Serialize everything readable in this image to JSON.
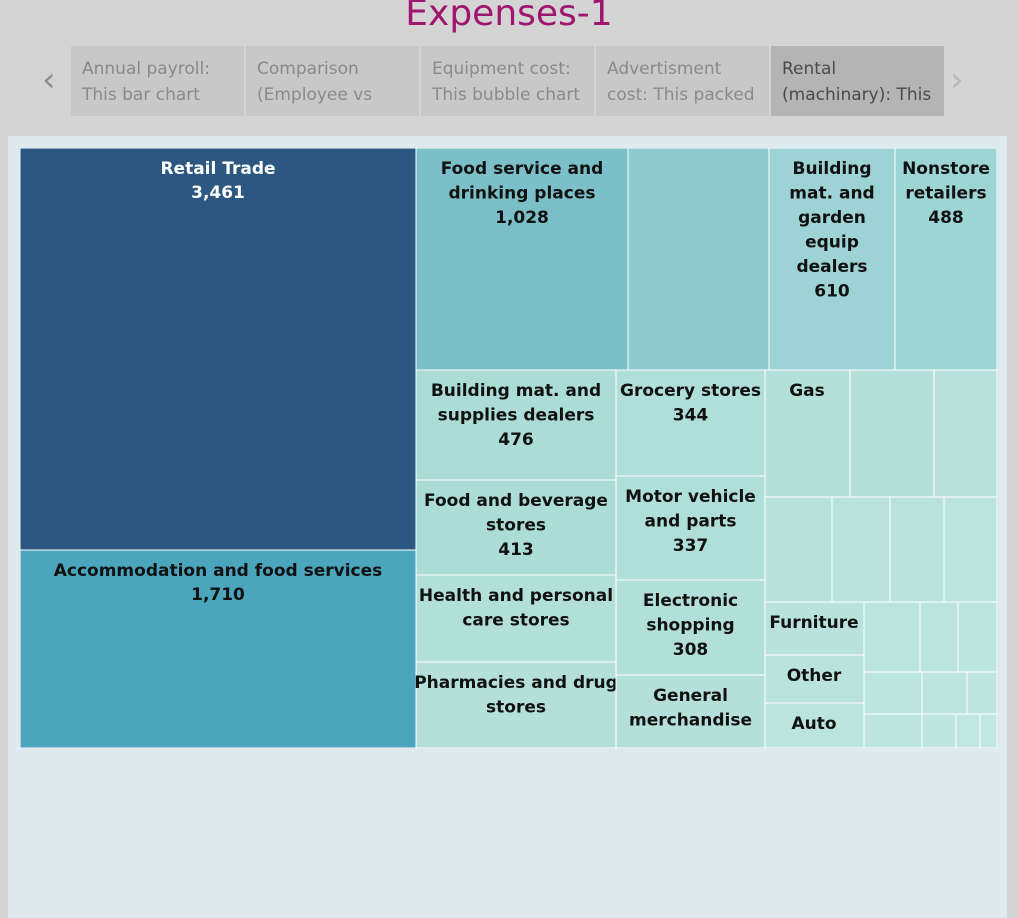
{
  "title": "Expenses-1",
  "story_tabs": [
    {
      "line1": "Annual payroll:",
      "line2": "This bar chart"
    },
    {
      "line1": "Comparison",
      "line2": "(Employee vs"
    },
    {
      "line1": "Equipment cost:",
      "line2": "This bubble chart"
    },
    {
      "line1": "Advertisment",
      "line2": "cost: This packed"
    },
    {
      "line1": "Rental",
      "line2": "(machinary): This"
    }
  ],
  "colors": {
    "accent_title": "#a0156f",
    "retail_trade": "#2b5780",
    "accommodation": "#4ba5bd"
  },
  "chart_data": {
    "type": "treemap",
    "categories": [
      {
        "name": "Retail Trade",
        "value": 3461,
        "color": "#2b5780",
        "label_color": "#ffffff",
        "children": [
          {
            "name": "Food service and drinking places",
            "value": 1028,
            "color": "#7bbfc8",
            "label_lines": [
              "Food service and",
              "drinking places"
            ],
            "show_value": true
          },
          {
            "name": "",
            "value": 695,
            "color": "#8ecace"
          },
          {
            "name": "Building mat. and garden equip dealers",
            "value": 610,
            "color": "#9dd3d4",
            "label_lines": [
              "Building",
              "mat. and",
              "garden",
              "equip",
              "dealers"
            ],
            "show_value": true
          },
          {
            "name": "Nonstore retailers",
            "value": 488,
            "color": "#9dd5d4",
            "label_lines": [
              "Nonstore",
              "retailers"
            ],
            "show_value": true
          },
          {
            "name": "Building mat. and supplies dealers",
            "value": 476,
            "color": "#acdcd6",
            "label_lines": [
              "Building mat. and",
              "supplies dealers"
            ],
            "show_value": true
          },
          {
            "name": "Grocery stores",
            "value": 344,
            "color": "#b0ded8",
            "label_lines": [
              "Grocery stores"
            ],
            "show_value": true
          },
          {
            "name": "Food and beverage stores",
            "value": 413,
            "color": "#acdcd6",
            "label_lines": [
              "Food and beverage",
              "stores"
            ],
            "show_value": true
          },
          {
            "name": "Motor vehicle and parts",
            "value": 337,
            "color": "#b0ded8",
            "label_lines": [
              "Motor vehicle",
              "and parts"
            ],
            "show_value": true
          },
          {
            "name": "Health and personal care stores",
            "color": "#b2dfd8",
            "label_lines": [
              "Health and personal",
              "care stores"
            ],
            "show_value": false
          },
          {
            "name": "Electronic shopping",
            "value": 308,
            "color": "#b2dfd8",
            "label_lines": [
              "Electronic",
              "shopping"
            ],
            "show_value": true
          },
          {
            "name": "Pharmacies and drug stores",
            "color": "#b4e0d9",
            "label_lines": [
              "Pharmacies and drug",
              "stores"
            ],
            "show_value": false
          },
          {
            "name": "General merchandise",
            "color": "#b4e0d9",
            "label_lines": [
              "General",
              "merchandise"
            ],
            "show_value": false
          },
          {
            "name": "Gas",
            "color": "#b5e0d9",
            "label_lines": [
              "Gas"
            ],
            "show_value": false
          },
          {
            "name": "Furniture",
            "color": "#b8e2db",
            "label_lines": [
              "Furniture"
            ],
            "show_value": false
          },
          {
            "name": "Other",
            "color": "#b9e3dc",
            "label_lines": [
              "Other"
            ],
            "show_value": false
          },
          {
            "name": "Auto",
            "color": "#bae4dd",
            "label_lines": [
              "Auto"
            ],
            "show_value": false
          }
        ]
      },
      {
        "name": "Accommodation and food services",
        "value": 1710,
        "color": "#4ba5bd",
        "label_color": "#111111"
      }
    ]
  }
}
